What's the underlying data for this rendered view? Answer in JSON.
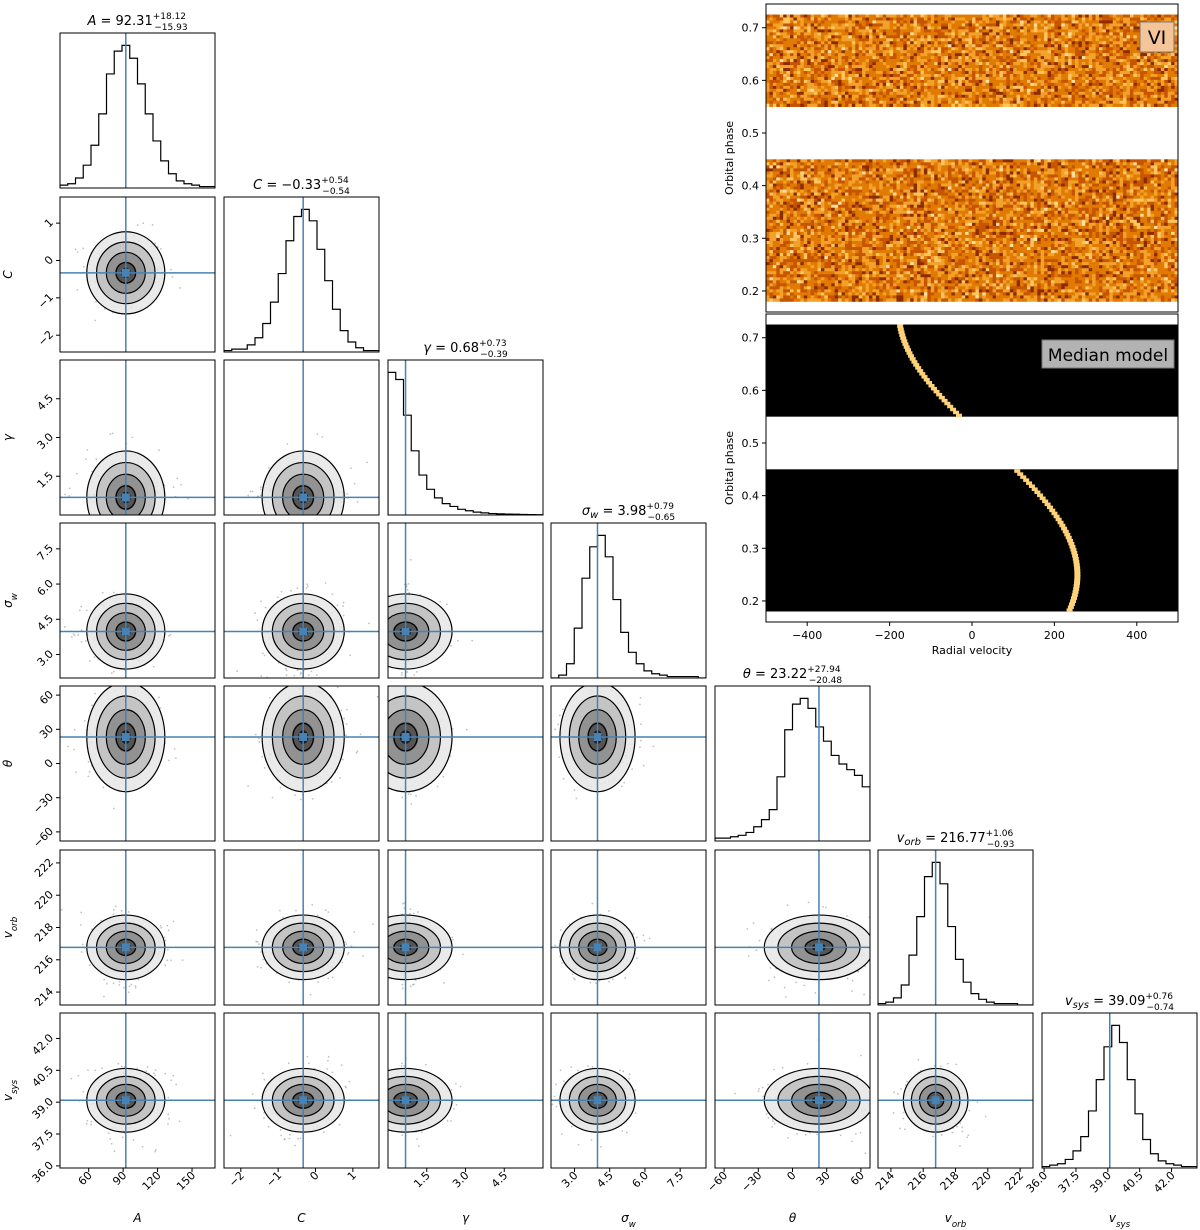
{
  "chart_data": [
    {
      "type": "corner",
      "parameters": [
        "A",
        "C",
        "γ",
        "σ_w",
        "θ",
        "v_orb",
        "v_sys"
      ],
      "axis_labels": [
        "A",
        "C",
        "γ",
        "σ_w",
        "θ",
        "v_orb",
        "v_sys"
      ],
      "median_lines": [
        92.31,
        -0.33,
        0.68,
        3.98,
        23.22,
        216.77,
        39.09
      ],
      "ranges": [
        [
          35,
          170
        ],
        [
          -2.45,
          1.7
        ],
        [
          0.0,
          6.0
        ],
        [
          2.0,
          8.6
        ],
        [
          -68,
          68
        ],
        [
          213.2,
          222.8
        ],
        [
          35.9,
          43.2
        ]
      ],
      "ticks": [
        [
          "60",
          "90",
          "120",
          "150"
        ],
        [
          "−2",
          "−1",
          "0",
          "1"
        ],
        [
          "1.5",
          "3.0",
          "4.5"
        ],
        [
          "3.0",
          "4.5",
          "6.0",
          "7.5"
        ],
        [
          "−60",
          "−30",
          "0",
          "30",
          "60"
        ],
        [
          "214",
          "216",
          "218",
          "220",
          "222"
        ],
        [
          "36.0",
          "37.5",
          "39.0",
          "40.5",
          "42.0"
        ]
      ],
      "titles": [
        {
          "param": "A",
          "median": "92.31",
          "plus": "+18.12",
          "minus": "−15.93"
        },
        {
          "param": "C",
          "median": "−0.33",
          "plus": "+0.54",
          "minus": "−0.54"
        },
        {
          "param": "γ",
          "median": "0.68",
          "plus": "+0.73",
          "minus": "−0.39"
        },
        {
          "param": "σ_w",
          "median": "3.98",
          "plus": "+0.79",
          "minus": "−0.65"
        },
        {
          "param": "θ",
          "median": "23.22",
          "plus": "+27.94",
          "minus": "−20.48"
        },
        {
          "param": "v_orb",
          "median": "216.77",
          "plus": "+1.06",
          "minus": "−0.93"
        },
        {
          "param": "v_sys",
          "median": "39.09",
          "plus": "+0.76",
          "minus": "−0.74"
        }
      ],
      "histograms": [
        [
          0.02,
          0.03,
          0.07,
          0.16,
          0.3,
          0.52,
          0.8,
          0.96,
          1.0,
          0.91,
          0.73,
          0.52,
          0.33,
          0.19,
          0.1,
          0.05,
          0.03,
          0.02,
          0.01,
          0.01
        ],
        [
          0.01,
          0.02,
          0.02,
          0.05,
          0.1,
          0.2,
          0.35,
          0.55,
          0.78,
          0.95,
          1.0,
          0.92,
          0.72,
          0.5,
          0.3,
          0.15,
          0.07,
          0.03,
          0.01,
          0.01
        ],
        [
          1.0,
          0.95,
          0.7,
          0.45,
          0.28,
          0.18,
          0.12,
          0.08,
          0.06,
          0.04,
          0.03,
          0.02,
          0.015,
          0.01,
          0.008,
          0.006,
          0.005,
          0.004,
          0.003,
          0.002
        ],
        [
          0.0,
          0.02,
          0.1,
          0.35,
          0.7,
          0.92,
          1.0,
          0.85,
          0.55,
          0.32,
          0.18,
          0.1,
          0.05,
          0.03,
          0.02,
          0.01,
          0.01,
          0.01,
          0.01,
          0.0
        ],
        [
          0.02,
          0.02,
          0.03,
          0.04,
          0.06,
          0.1,
          0.15,
          0.22,
          0.45,
          0.78,
          0.96,
          1.0,
          0.93,
          0.8,
          0.7,
          0.6,
          0.54,
          0.5,
          0.46,
          0.38
        ],
        [
          0.01,
          0.02,
          0.05,
          0.14,
          0.35,
          0.62,
          0.9,
          1.0,
          0.85,
          0.55,
          0.32,
          0.16,
          0.08,
          0.04,
          0.02,
          0.01,
          0.01,
          0.01,
          0.0,
          0.0
        ],
        [
          0.01,
          0.02,
          0.03,
          0.06,
          0.12,
          0.22,
          0.4,
          0.62,
          0.85,
          1.0,
          0.88,
          0.62,
          0.38,
          0.2,
          0.1,
          0.05,
          0.03,
          0.02,
          0.01,
          0.01
        ]
      ],
      "marginal_std": [
        17,
        0.55,
        0.9,
        0.8,
        24,
        1.0,
        0.75
      ]
    },
    {
      "type": "heatmap",
      "label": "VI",
      "xlabel": "",
      "ylabel": "Orbital phase",
      "xlim": [
        -500,
        500
      ],
      "ylim": [
        0.16,
        0.745
      ],
      "yticks": [
        "0.2",
        "0.3",
        "0.4",
        "0.5",
        "0.6",
        "0.7"
      ],
      "phase_coverage": [
        [
          0.18,
          0.45
        ],
        [
          0.55,
          0.725
        ]
      ],
      "colormap": "afmhot"
    },
    {
      "type": "heatmap",
      "label": "Median model",
      "xlabel": "Radial velocity",
      "ylabel": "Orbital phase",
      "xlim": [
        -500,
        500
      ],
      "ylim": [
        0.16,
        0.745
      ],
      "xticks": [
        "−400",
        "−200",
        "0",
        "200",
        "400"
      ],
      "yticks": [
        "0.2",
        "0.3",
        "0.4",
        "0.5",
        "0.6",
        "0.7"
      ],
      "phase_coverage": [
        [
          0.18,
          0.45
        ],
        [
          0.55,
          0.725
        ]
      ],
      "signal": {
        "K_p": 216.77,
        "v_sys": 39.09,
        "phase_zero": 0.5
      },
      "colormap": "afmhot"
    }
  ],
  "colors": {
    "median_line": "#4682b4",
    "contour": "#000000",
    "frame": "#000000"
  }
}
